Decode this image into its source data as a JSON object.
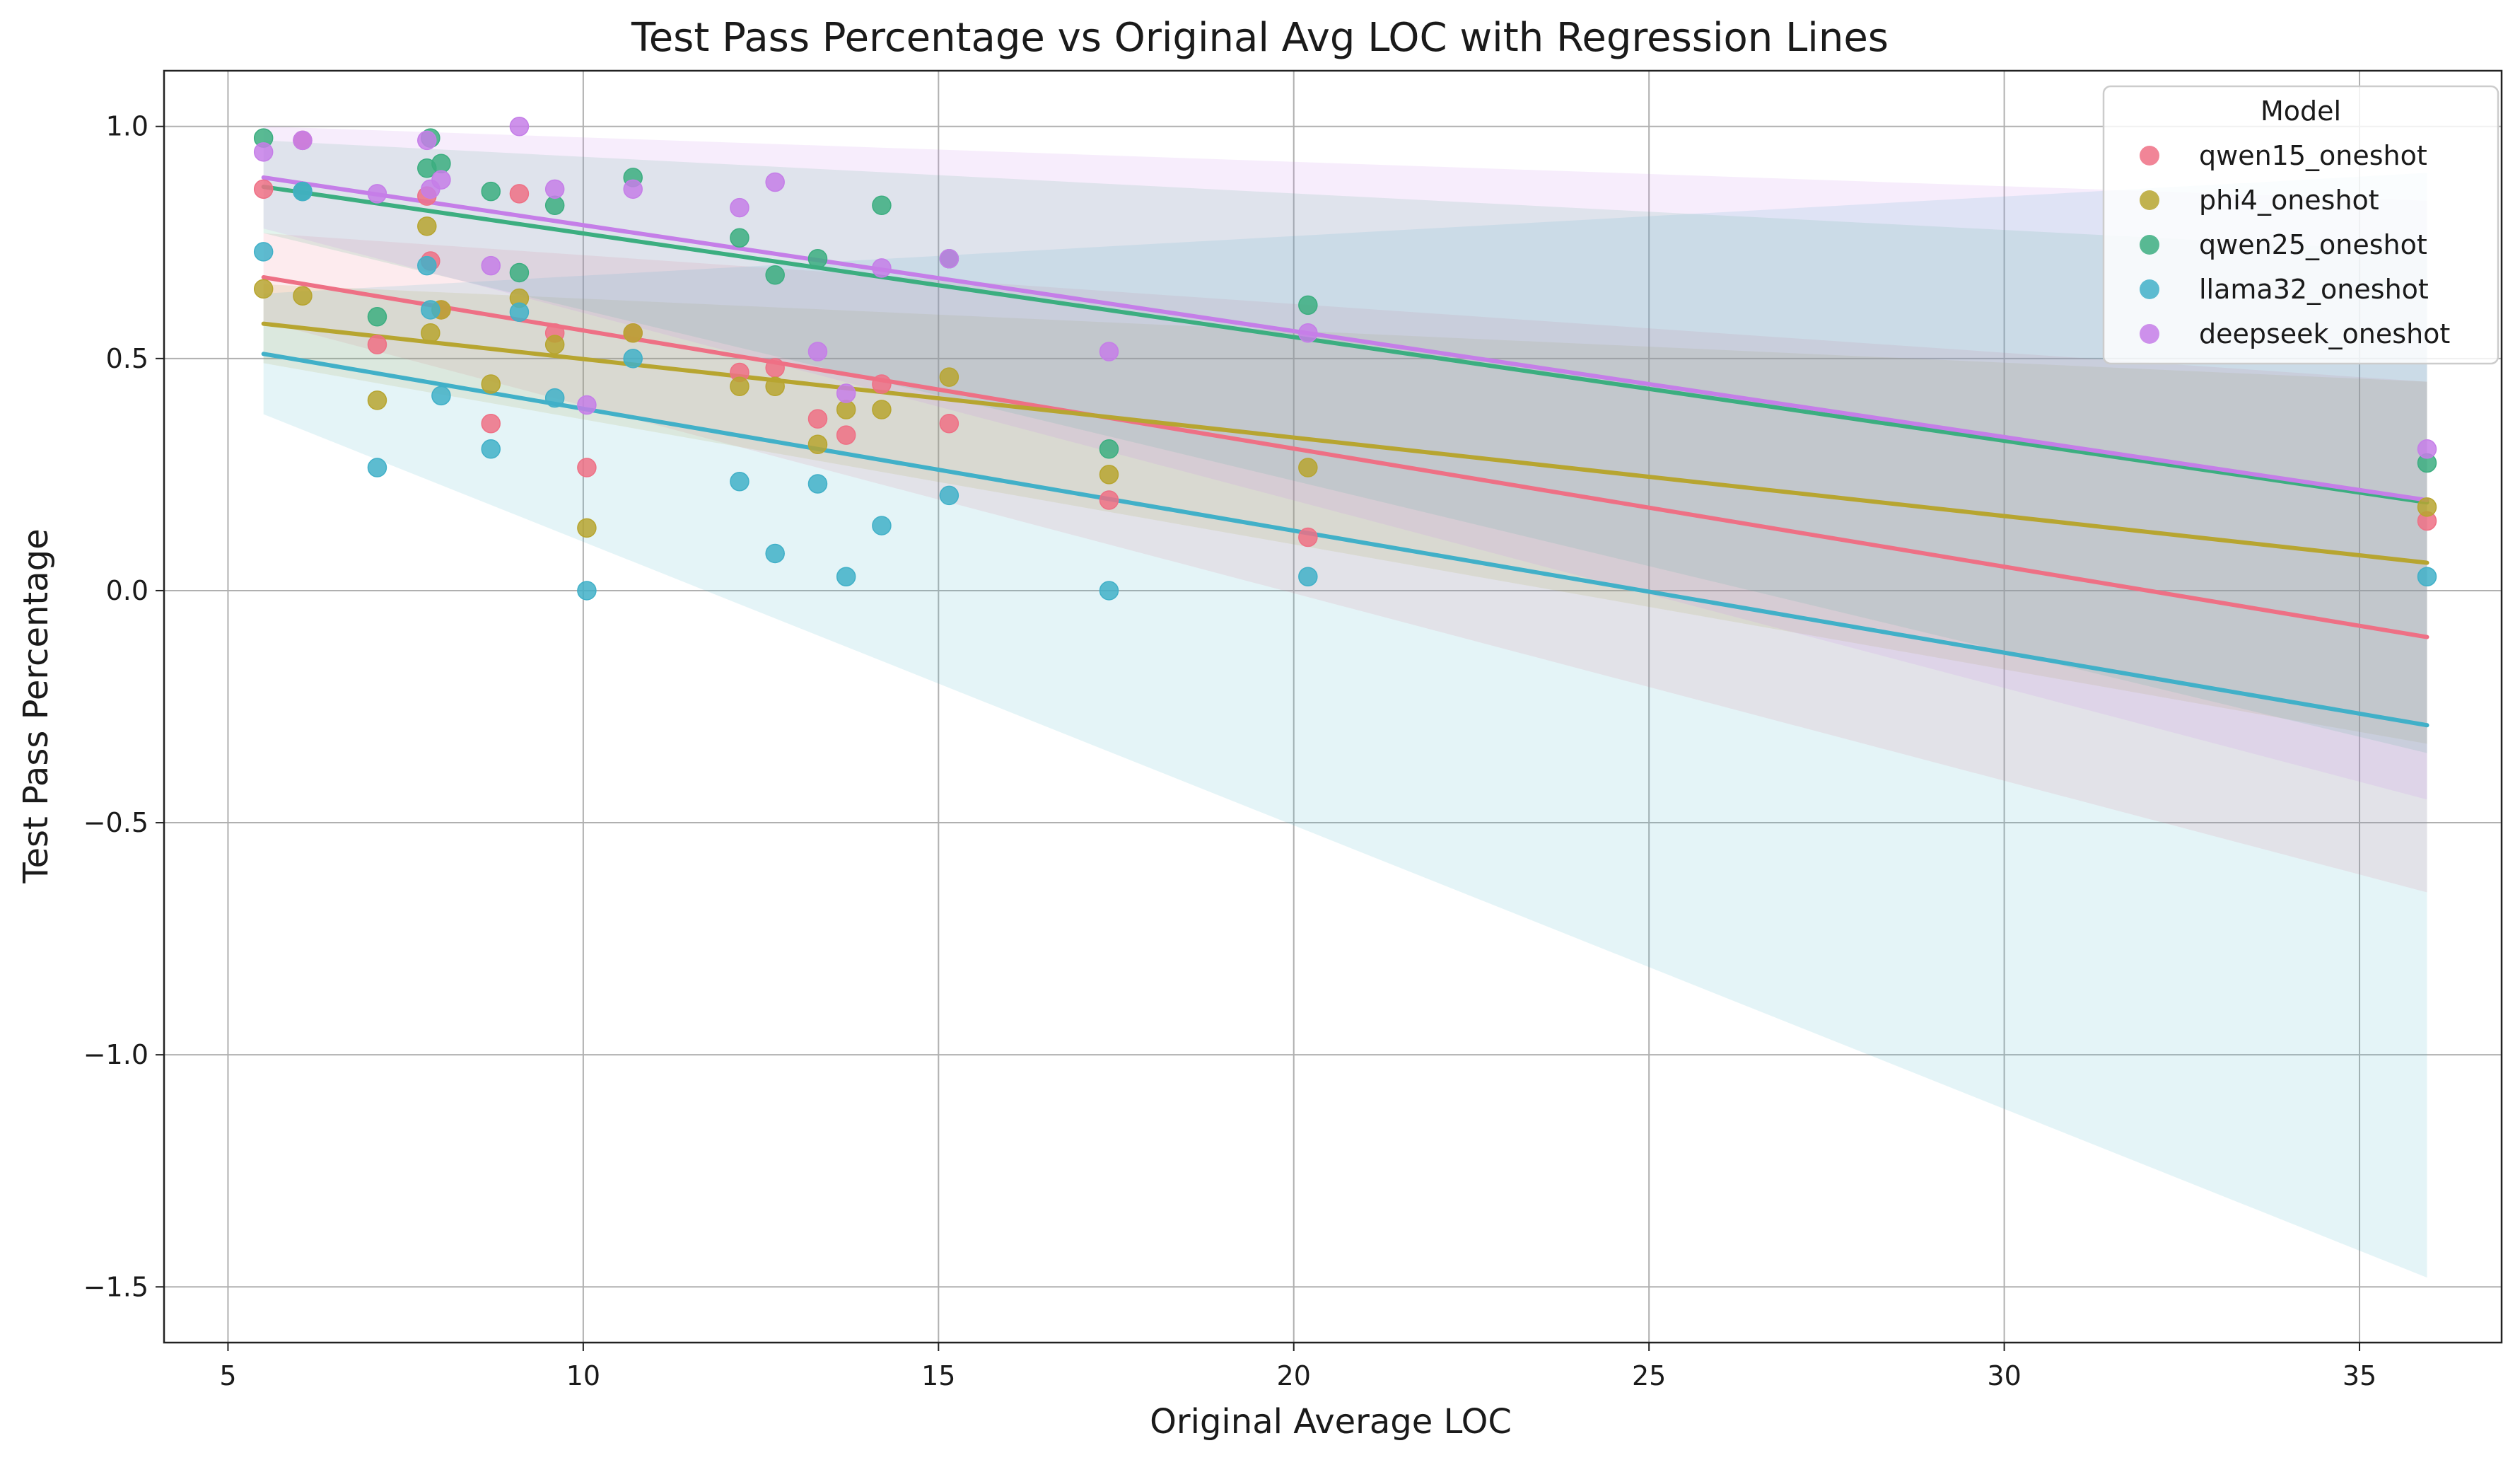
{
  "chart_data": {
    "type": "scatter",
    "title": "Test Pass Percentage vs Original Avg LOC with Regression Lines",
    "xlabel": "Original Average LOC",
    "ylabel": "Test Pass Percentage",
    "xlim": [
      4.1,
      37.0
    ],
    "ylim": [
      -1.62,
      1.12
    ],
    "xticks": [
      5,
      10,
      15,
      20,
      25,
      30,
      35
    ],
    "yticks": [
      -1.5,
      -1.0,
      -0.5,
      0.0,
      0.5,
      1.0
    ],
    "xtick_labels": [
      "5",
      "10",
      "15",
      "20",
      "25",
      "30",
      "35"
    ],
    "ytick_labels": [
      "−1.5",
      "−1.0",
      "−0.5",
      "0.0",
      "0.5",
      "1.0"
    ],
    "grid": true,
    "legend": {
      "title": "Model",
      "position": "top-right"
    },
    "series": [
      {
        "name": "qwen15_oneshot",
        "color": "#ee7085",
        "x": [
          5.5,
          6.05,
          7.1,
          7.8,
          7.85,
          8.0,
          8.7,
          9.1,
          9.6,
          10.05,
          10.7,
          12.2,
          12.7,
          13.3,
          13.7,
          14.2,
          15.15,
          17.4,
          20.2,
          35.95
        ],
        "y": [
          0.865,
          0.97,
          0.53,
          0.85,
          0.71,
          0.605,
          0.36,
          0.855,
          0.555,
          0.265,
          0.555,
          0.47,
          0.48,
          0.37,
          0.335,
          0.445,
          0.36,
          0.195,
          0.115,
          0.15
        ],
        "fit": {
          "x": [
            5.5,
            35.95
          ],
          "y": [
            0.675,
            -0.1
          ]
        },
        "ci_lower": [
          0.58,
          -0.65
        ],
        "ci_upper": [
          0.77,
          0.45
        ]
      },
      {
        "name": "phi4_oneshot",
        "color": "#b7a530",
        "x": [
          5.5,
          6.05,
          7.1,
          7.8,
          7.85,
          8.0,
          8.7,
          9.1,
          9.6,
          10.05,
          10.7,
          12.2,
          12.7,
          13.3,
          13.7,
          14.2,
          15.15,
          17.4,
          20.2,
          35.95
        ],
        "y": [
          0.65,
          0.635,
          0.41,
          0.785,
          0.555,
          0.605,
          0.445,
          0.63,
          0.53,
          0.135,
          0.555,
          0.44,
          0.44,
          0.315,
          0.39,
          0.39,
          0.46,
          0.25,
          0.265,
          0.18
        ],
        "fit": {
          "x": [
            5.5,
            35.95
          ],
          "y": [
            0.575,
            0.06
          ]
        },
        "ci_lower": [
          0.49,
          -0.33
        ],
        "ci_upper": [
          0.66,
          0.45
        ]
      },
      {
        "name": "qwen25_oneshot",
        "color": "#3cae80",
        "x": [
          5.5,
          6.05,
          7.1,
          7.8,
          7.85,
          8.0,
          8.7,
          9.1,
          9.6,
          10.7,
          12.2,
          12.7,
          13.3,
          14.2,
          15.15,
          17.4,
          20.2,
          35.95
        ],
        "y": [
          0.975,
          0.86,
          0.59,
          0.91,
          0.975,
          0.92,
          0.86,
          0.685,
          0.83,
          0.89,
          0.76,
          0.68,
          0.715,
          0.83,
          0.715,
          0.305,
          0.615,
          0.275
        ],
        "fit": {
          "x": [
            5.5,
            35.95
          ],
          "y": [
            0.87,
            0.19
          ]
        },
        "ci_lower": [
          0.77,
          -0.35
        ],
        "ci_upper": [
          0.97,
          0.73
        ]
      },
      {
        "name": "llama32_oneshot",
        "color": "#41b0c8",
        "x": [
          5.5,
          6.05,
          7.1,
          7.8,
          7.85,
          8.0,
          8.7,
          9.1,
          9.6,
          10.05,
          10.7,
          12.2,
          12.7,
          13.3,
          13.7,
          14.2,
          15.15,
          17.4,
          20.2,
          35.95
        ],
        "y": [
          0.73,
          0.86,
          0.265,
          0.7,
          0.605,
          0.42,
          0.305,
          0.6,
          0.415,
          0.0,
          0.5,
          0.235,
          0.08,
          0.23,
          0.03,
          0.14,
          0.205,
          0.0,
          0.03,
          0.03
        ],
        "fit": {
          "x": [
            5.5,
            35.95
          ],
          "y": [
            0.51,
            -0.29
          ]
        },
        "ci_lower": [
          0.38,
          -1.48
        ],
        "ci_upper": [
          0.64,
          0.9
        ]
      },
      {
        "name": "deepseek_oneshot",
        "color": "#c57ee8",
        "x": [
          5.5,
          6.05,
          7.1,
          7.8,
          7.85,
          8.0,
          8.7,
          9.1,
          9.6,
          10.05,
          10.7,
          12.2,
          12.7,
          13.3,
          13.7,
          14.2,
          15.15,
          17.4,
          20.2,
          35.95
        ],
        "y": [
          0.945,
          0.97,
          0.855,
          0.97,
          0.865,
          0.885,
          0.7,
          1.0,
          0.865,
          0.4,
          0.865,
          0.825,
          0.88,
          0.515,
          0.425,
          0.695,
          0.715,
          0.515,
          0.555,
          0.305
        ],
        "fit": {
          "x": [
            5.5,
            35.95
          ],
          "y": [
            0.89,
            0.195
          ]
        },
        "ci_lower": [
          0.78,
          -0.45
        ],
        "ci_upper": [
          1.0,
          0.84
        ]
      }
    ]
  }
}
